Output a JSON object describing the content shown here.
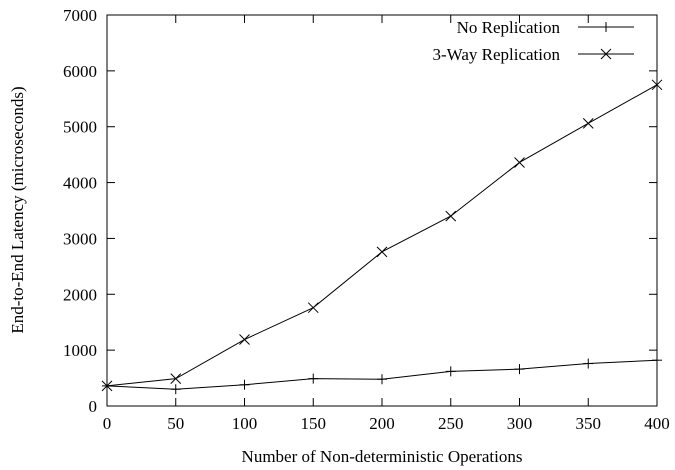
{
  "chart_data": {
    "type": "line",
    "title": "",
    "xlabel": "Number of Non-deterministic Operations",
    "ylabel": "End-to-End Latency (microseconds)",
    "xlim": [
      0,
      400
    ],
    "ylim": [
      0,
      7000
    ],
    "xticks": [
      0,
      50,
      100,
      150,
      200,
      250,
      300,
      350,
      400
    ],
    "yticks": [
      0,
      1000,
      2000,
      3000,
      4000,
      5000,
      6000,
      7000
    ],
    "grid": false,
    "legend_position": "top-right",
    "x": [
      0,
      50,
      100,
      150,
      200,
      250,
      300,
      350,
      400
    ],
    "series": [
      {
        "name": "No Replication",
        "marker": "plus",
        "values": [
          360,
          300,
          380,
          490,
          480,
          620,
          660,
          760,
          820
        ]
      },
      {
        "name": "3-Way Replication",
        "marker": "cross",
        "values": [
          360,
          490,
          1190,
          1760,
          2760,
          3400,
          4360,
          5060,
          5750
        ]
      }
    ]
  }
}
